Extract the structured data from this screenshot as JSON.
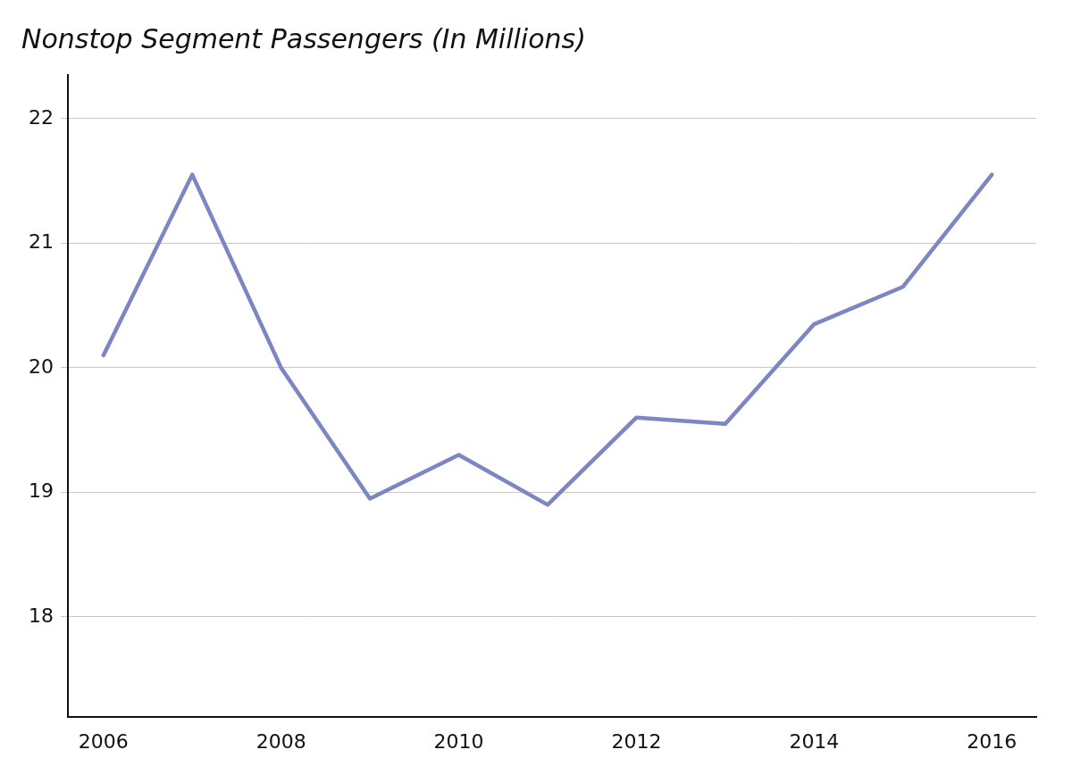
{
  "chart_data": {
    "type": "line",
    "title": "Nonstop Segment Passengers (In Millions)",
    "x": [
      2006,
      2007,
      2008,
      2009,
      2010,
      2011,
      2012,
      2013,
      2014,
      2015,
      2016
    ],
    "values": [
      20.1,
      21.55,
      20.0,
      18.95,
      19.3,
      18.9,
      19.6,
      19.55,
      20.35,
      20.65,
      21.55
    ],
    "color": "#7b86c2",
    "xlim": [
      2005.6,
      2016.5
    ],
    "xticks": [
      2006,
      2008,
      2010,
      2012,
      2014,
      2016
    ],
    "ylim": [
      17.2,
      22.35
    ],
    "yticks": [
      18,
      19,
      20,
      21,
      22
    ],
    "grid": true
  }
}
